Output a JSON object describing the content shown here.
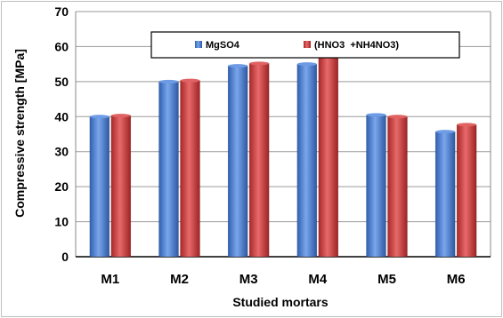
{
  "chart_data": {
    "type": "bar",
    "title": "",
    "xlabel": "Studied mortars",
    "ylabel": "Compressive strength [MPa]",
    "ylim": [
      0,
      70
    ],
    "yticks": [
      0,
      10,
      20,
      30,
      40,
      50,
      60,
      70
    ],
    "grid": true,
    "legend_position": "top",
    "categories": [
      "M1",
      "M2",
      "M3",
      "M4",
      "M5",
      "M6"
    ],
    "series": [
      {
        "name": "MgSO4",
        "color": "#4a7fd0",
        "values": [
          40,
          50,
          54.5,
          55,
          40.5,
          35.7
        ]
      },
      {
        "name": "(HNO3  +NH4NO3)",
        "color": "#c93a3a",
        "values": [
          40.3,
          50.3,
          55.2,
          58.2,
          40,
          37.7
        ]
      }
    ]
  }
}
